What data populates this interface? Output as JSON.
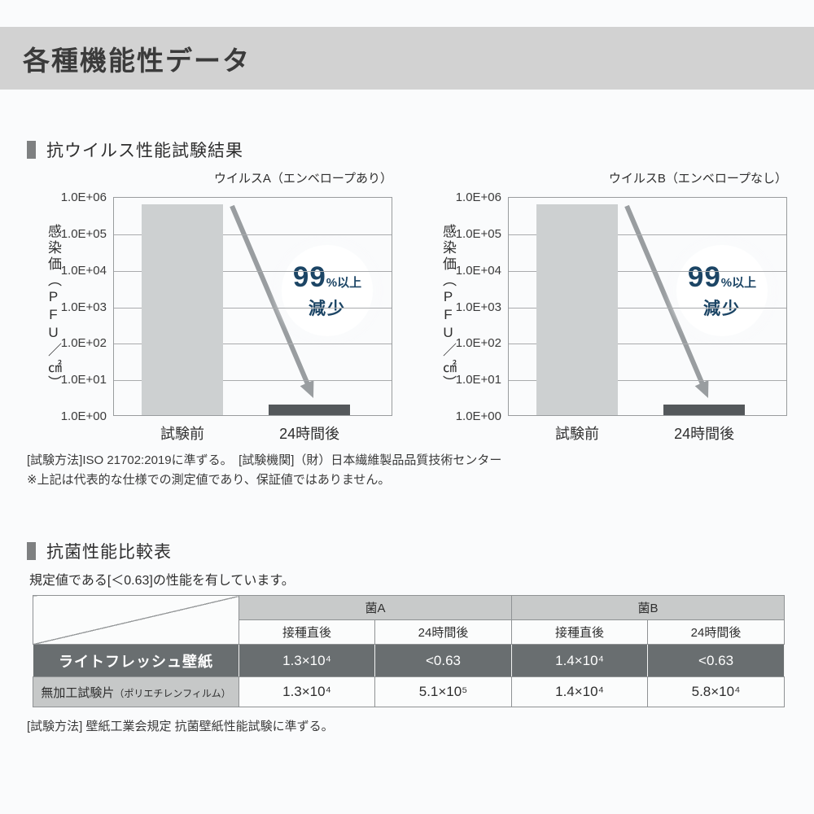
{
  "header": {
    "title": "各種機能性データ"
  },
  "sections": {
    "virus": {
      "title": "抗ウイルス性能試験結果",
      "notes": [
        "[試験方法]ISO 21702:2019に準ずる。　[試験機関]（財）日本繊維製品品質技術センター",
        "※上記は代表的な仕様での測定値であり、保証値ではありません。"
      ]
    },
    "bacteria": {
      "title": "抗菌性能比較表",
      "description": "規定値である[＜0.63]の性能を有しています。",
      "note": "[試験方法] 壁紙工業会規定 抗菌壁紙性能試験に準ずる。"
    }
  },
  "chart_data": [
    {
      "type": "bar",
      "title": "ウイルスA（エンベロープあり）",
      "categories": [
        "試験前",
        "24時間後"
      ],
      "values": [
        600000,
        2
      ],
      "ylabel": "感染価（PFU／㎠）",
      "yticks": [
        "1.0E+06",
        "1.0E+05",
        "1.0E+04",
        "1.0E+03",
        "1.0E+02",
        "1.0E+01",
        "1.0E+00"
      ],
      "ylim_log": [
        0,
        6
      ],
      "yscale": "log",
      "grid": true,
      "annotation": {
        "value": "99",
        "unit": "%以上",
        "action": "減少"
      }
    },
    {
      "type": "bar",
      "title": "ウイルスB（エンベロープなし）",
      "categories": [
        "試験前",
        "24時間後"
      ],
      "values": [
        600000,
        2
      ],
      "ylabel": "感染価（PFU／㎠）",
      "yticks": [
        "1.0E+06",
        "1.0E+05",
        "1.0E+04",
        "1.0E+03",
        "1.0E+02",
        "1.0E+01",
        "1.0E+00"
      ],
      "ylim_log": [
        0,
        6
      ],
      "yscale": "log",
      "grid": true,
      "annotation": {
        "value": "99",
        "unit": "%以上",
        "action": "減少"
      }
    }
  ],
  "table": {
    "group_headers": [
      "菌A",
      "菌B"
    ],
    "sub_headers": [
      "接種直後",
      "24時間後",
      "接種直後",
      "24時間後"
    ],
    "rows": [
      {
        "label": "ライトフレッシュ壁紙",
        "label_note": "",
        "values": [
          "1.3×10⁴",
          "<0.63",
          "1.4×10⁴",
          "<0.63"
        ]
      },
      {
        "label": "無加工試験片",
        "label_note": "（ポリエチレンフィルム）",
        "values": [
          "1.3×10⁴",
          "5.1×10⁵",
          "1.4×10⁴",
          "5.8×10⁴"
        ]
      }
    ]
  },
  "colors": {
    "header_band": "#d2d2d2",
    "bar_before": "#cdd0d1",
    "bar_after": "#54585b",
    "arrow": "#999da0",
    "badge_text": "#1c4565",
    "table_dark_row": "#696e70",
    "table_group_header": "#c8caca"
  }
}
